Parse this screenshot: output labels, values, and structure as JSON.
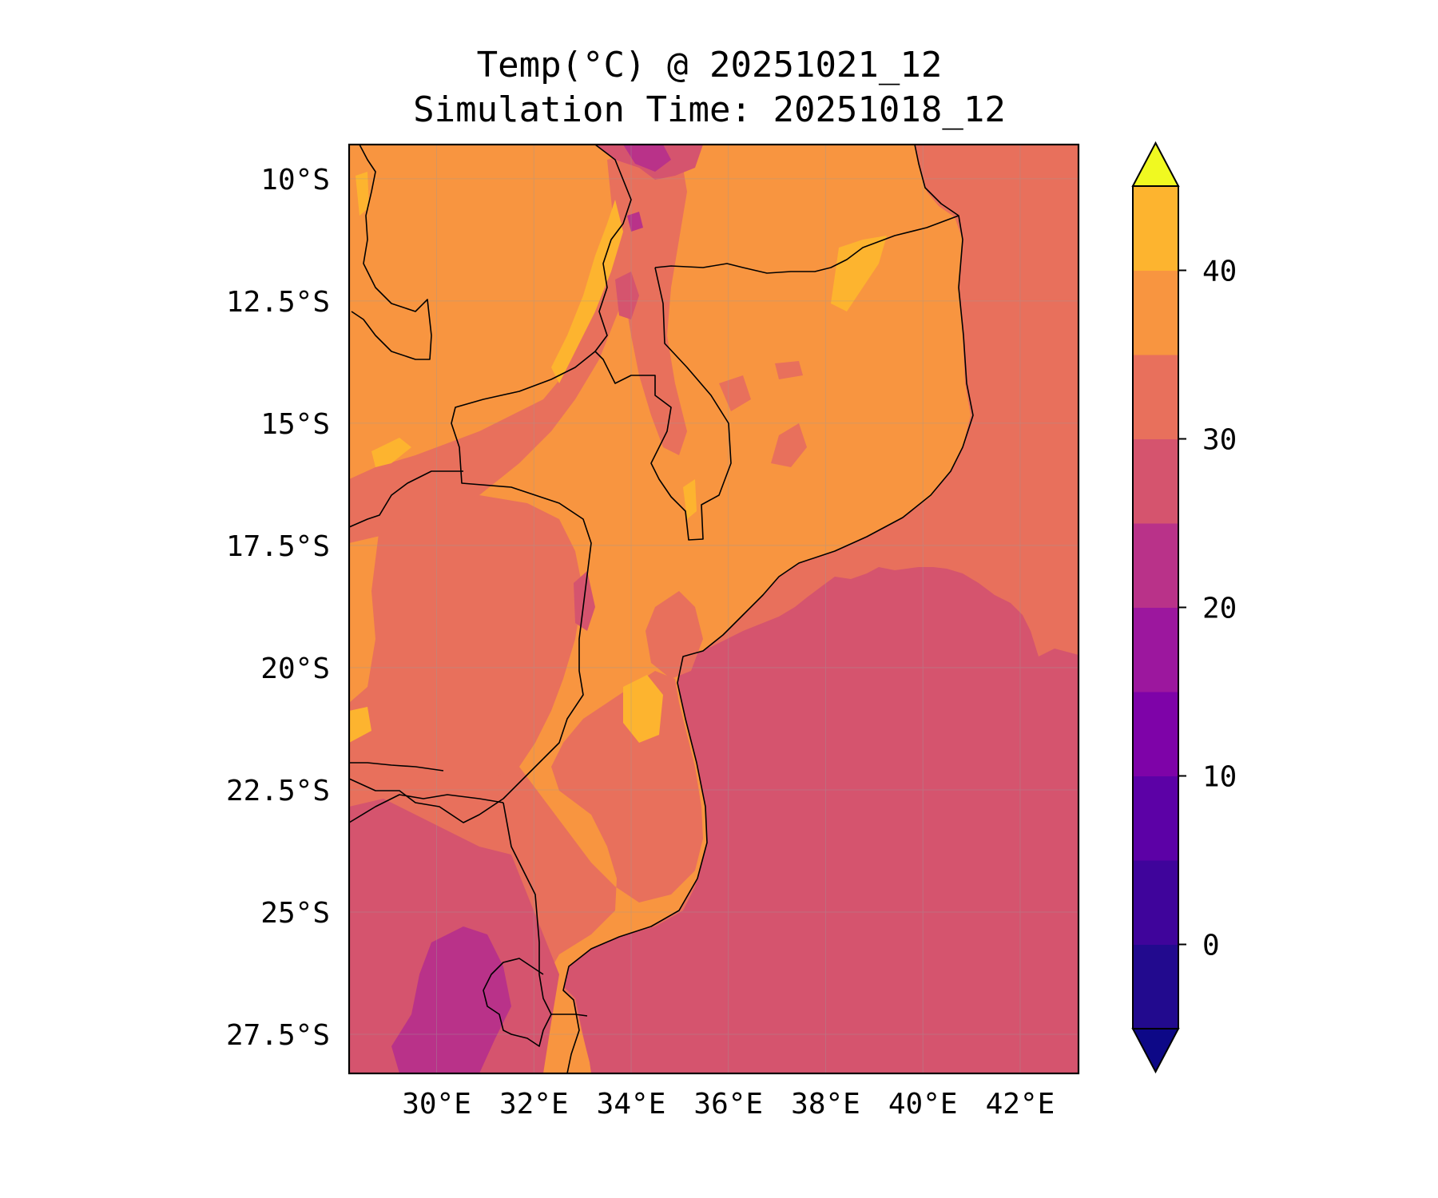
{
  "title": {
    "line1": "Temp(°C) @ 20251021_12",
    "line2": "Simulation Time: 20251018_12"
  },
  "map": {
    "variable": "Temp(°C)",
    "valid_time": "20251021_12",
    "simulation_time": "20251018_12",
    "lon_range": [
      28.2,
      43.2
    ],
    "lat_range": [
      -28.3,
      -9.3
    ],
    "lon_ticks": [
      {
        "value": 30,
        "label": "30°E"
      },
      {
        "value": 32,
        "label": "32°E"
      },
      {
        "value": 34,
        "label": "34°E"
      },
      {
        "value": 36,
        "label": "36°E"
      },
      {
        "value": 38,
        "label": "38°E"
      },
      {
        "value": 40,
        "label": "40°E"
      },
      {
        "value": 42,
        "label": "42°E"
      }
    ],
    "lat_ticks": [
      {
        "value": -10,
        "label": "10°S"
      },
      {
        "value": -12.5,
        "label": "12.5°S"
      },
      {
        "value": -15,
        "label": "15°S"
      },
      {
        "value": -17.5,
        "label": "17.5°S"
      },
      {
        "value": -20,
        "label": "20°S"
      },
      {
        "value": -22.5,
        "label": "22.5°S"
      },
      {
        "value": -25,
        "label": "25°S"
      },
      {
        "value": -27.5,
        "label": "27.5°S"
      }
    ],
    "grid": true,
    "ocean_value_c": 22.5,
    "coastal_ocean_value_c": 27.5
  },
  "colorbar": {
    "levels": [
      -5,
      0,
      5,
      10,
      15,
      20,
      25,
      30,
      35,
      40,
      45
    ],
    "colors": [
      "#220a8e",
      "#3f049b",
      "#5c01a6",
      "#7e03a8",
      "#9c179e",
      "#b93289",
      "#d5546e",
      "#e8705c",
      "#f89540",
      "#fdb42f",
      "#f0f921"
    ],
    "under_color": "#0d0887",
    "over_color": "#f0f921",
    "extend": "both",
    "tick_values": [
      0,
      10,
      20,
      30,
      40
    ],
    "tick_labels": [
      "0",
      "10",
      "20",
      "30",
      "40"
    ]
  }
}
